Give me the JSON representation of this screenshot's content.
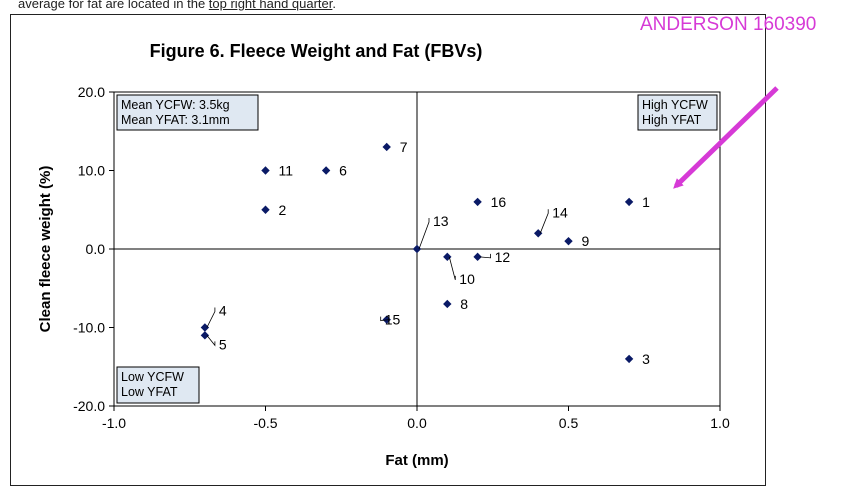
{
  "document": {
    "snippet_start": "average for fat are located in the ",
    "snippet_link": "top right hand quarter",
    "snippet_end": "."
  },
  "annotation": {
    "text": "ANDERSON 160390",
    "color": "#d63ad6"
  },
  "chart_data": {
    "type": "scatter",
    "title": "Figure 6.  Fleece Weight and Fat (FBVs)",
    "xlabel": "Fat (mm)",
    "ylabel": "Clean fleece weight (%)",
    "xlim": [
      -1.0,
      1.0
    ],
    "ylim": [
      -20.0,
      20.0
    ],
    "x_ticks": [
      "-1.0",
      "-0.5",
      "0.0",
      "0.5",
      "1.0"
    ],
    "y_ticks": [
      "20.0",
      "10.0",
      "0.0",
      "-10.0",
      "-20.0"
    ],
    "grid": false,
    "marker_color": "#0a1a66",
    "points": [
      {
        "label": "1",
        "x": 0.7,
        "y": 6
      },
      {
        "label": "2",
        "x": -0.5,
        "y": 5
      },
      {
        "label": "3",
        "x": 0.7,
        "y": -14
      },
      {
        "label": "4",
        "x": -0.7,
        "y": -10
      },
      {
        "label": "5",
        "x": -0.7,
        "y": -11
      },
      {
        "label": "6",
        "x": -0.3,
        "y": 10
      },
      {
        "label": "7",
        "x": -0.1,
        "y": 13
      },
      {
        "label": "8",
        "x": 0.1,
        "y": -7
      },
      {
        "label": "9",
        "x": 0.5,
        "y": 1
      },
      {
        "label": "10",
        "x": 0.1,
        "y": -1
      },
      {
        "label": "11",
        "x": -0.5,
        "y": 10
      },
      {
        "label": "12",
        "x": 0.2,
        "y": -1
      },
      {
        "label": "13",
        "x": 0.0,
        "y": 0
      },
      {
        "label": "14",
        "x": 0.4,
        "y": 2
      },
      {
        "label": "15",
        "x": -0.1,
        "y": -9
      },
      {
        "label": "16",
        "x": 0.2,
        "y": 6
      }
    ],
    "annotations": [
      {
        "lines": [
          "Mean YCFW: 3.5kg",
          "Mean YFAT: 3.1mm"
        ],
        "position": "top-left"
      },
      {
        "lines": [
          "High YCFW",
          "High YFAT"
        ],
        "position": "top-right"
      },
      {
        "lines": [
          "Low YCFW",
          "Low YFAT"
        ],
        "position": "bottom-left"
      }
    ]
  }
}
